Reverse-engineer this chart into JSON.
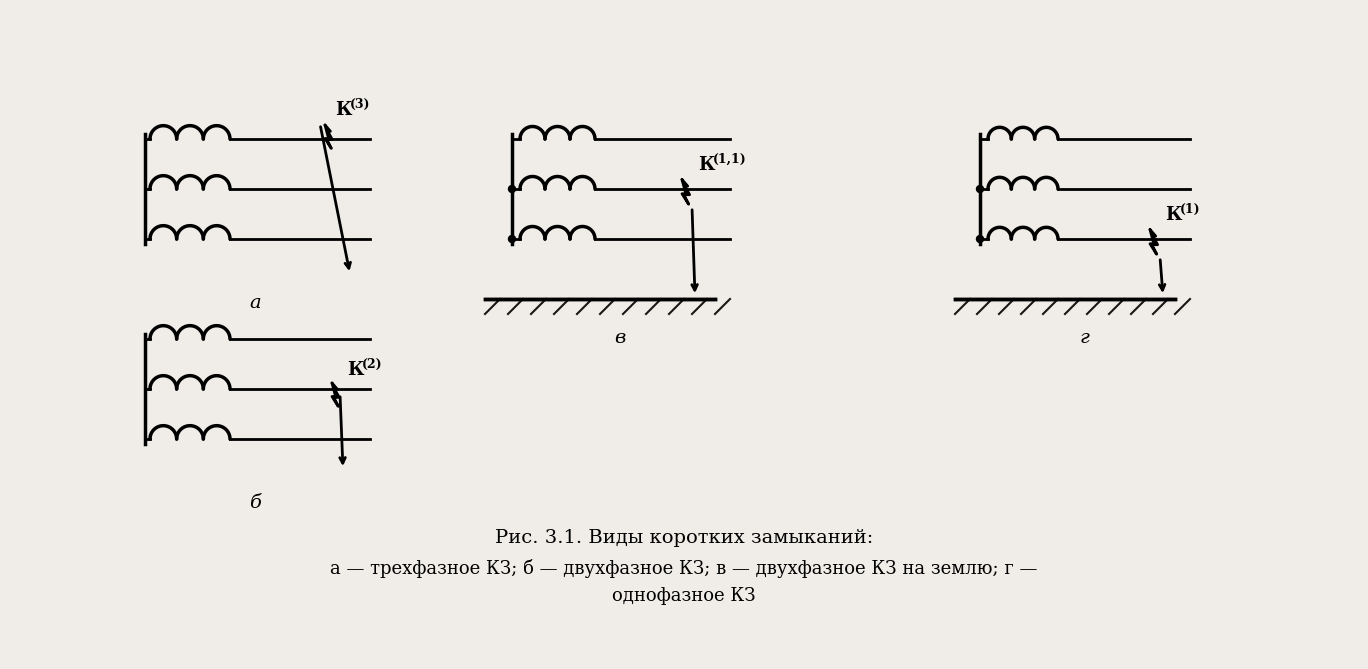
{
  "bg_color": "#f0ede8",
  "line_color": "#000000",
  "line_width": 2.0,
  "title1": "Рис. 3.1. Виды коротких замыканий:",
  "title2": "а — трехфазное КЗ; б — двухфазное КЗ; в — двухфазное КЗ на землю; г —",
  "title3": "однофазное КЗ",
  "label_a": "а",
  "label_b": "б",
  "label_v": "в",
  "label_g": "г",
  "K3_label": "К",
  "K3_sup": "(3)",
  "K2_label": "К",
  "K2_sup": "(2)",
  "K11_label": "К",
  "K11_sup": "(1,1)",
  "K1_label": "К",
  "K1_sup": "(1)"
}
